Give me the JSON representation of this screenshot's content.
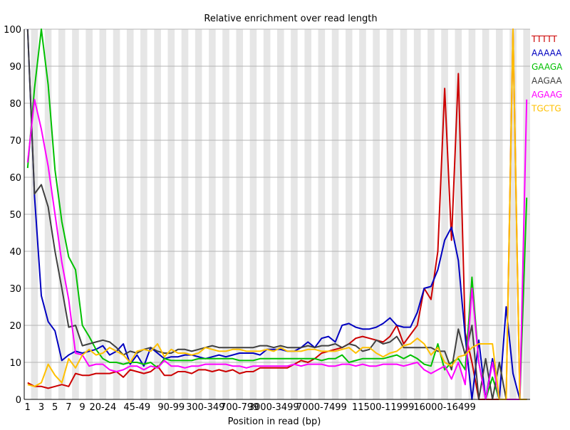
{
  "chart_data": {
    "type": "line",
    "title": "Relative enrichment over read length",
    "xlabel": "Position in read (bp)",
    "ylabel": "",
    "ylim": [
      0,
      100
    ],
    "y_ticks": [
      0,
      10,
      20,
      30,
      40,
      50,
      60,
      70,
      80,
      90,
      100
    ],
    "grid": "horizontal lines with alternating grey column bands",
    "legend_position": "top-right",
    "x_tick_labels": [
      {
        "index": 0,
        "label": "1"
      },
      {
        "index": 2,
        "label": "3"
      },
      {
        "index": 4,
        "label": "5"
      },
      {
        "index": 6,
        "label": "7"
      },
      {
        "index": 8,
        "label": "9"
      },
      {
        "index": 11,
        "label": "20-24"
      },
      {
        "index": 16,
        "label": "45-49"
      },
      {
        "index": 21,
        "label": "90-99"
      },
      {
        "index": 26,
        "label": "300-349"
      },
      {
        "index": 31,
        "label": "700-799"
      },
      {
        "index": 36,
        "label": "3000-3499"
      },
      {
        "index": 43,
        "label": "7000-7499"
      },
      {
        "index": 52,
        "label": "11500-11999"
      },
      {
        "index": 61,
        "label": "16000-16499"
      }
    ],
    "series": [
      {
        "name": "TTTTT",
        "color": "#cc0000",
        "values": [
          4.5,
          3.5,
          3.5,
          3,
          3.5,
          4,
          3.5,
          7,
          6.5,
          6.5,
          7,
          7,
          7,
          7.5,
          6,
          8,
          7.5,
          7,
          7.5,
          9,
          6.5,
          6.5,
          7.5,
          7.5,
          7,
          8,
          8,
          7.5,
          8,
          7.5,
          8,
          7,
          7.5,
          7.5,
          8.5,
          8.5,
          8.5,
          8.5,
          8.5,
          9.5,
          10.5,
          10,
          11,
          12.5,
          13,
          13.5,
          14,
          15,
          16.5,
          17,
          16.5,
          16,
          15.5,
          17,
          20,
          15,
          17.5,
          20,
          30,
          27,
          40,
          84,
          43,
          88,
          18,
          10,
          0,
          0,
          0,
          0,
          0,
          100,
          0,
          0
        ]
      },
      {
        "name": "AAAAA",
        "color": "#0000c0",
        "values": [
          100,
          55,
          28,
          21,
          18.5,
          10.5,
          12,
          13,
          12.5,
          13,
          13.5,
          14.5,
          12,
          13,
          15,
          9.5,
          12,
          9,
          14,
          12.5,
          11,
          11.5,
          11.5,
          12,
          12,
          11.5,
          11,
          11.5,
          12,
          11.5,
          12,
          12.5,
          12.5,
          12.5,
          12,
          13.5,
          13.5,
          13.5,
          13,
          13,
          14,
          15.5,
          14,
          16.5,
          17,
          15.5,
          20,
          20.5,
          19.5,
          19,
          19,
          19.5,
          20.5,
          22,
          20,
          19.5,
          19.5,
          23.5,
          30,
          30.5,
          35,
          43,
          46.5,
          37.5,
          17,
          0,
          16,
          0,
          11,
          0,
          25,
          7,
          0,
          0
        ]
      },
      {
        "name": "GAAGA",
        "color": "#00c000",
        "values": [
          62.5,
          84,
          100,
          85,
          62,
          48,
          38.5,
          35,
          20,
          17,
          13.5,
          11,
          10,
          10,
          9.5,
          10,
          10,
          9.5,
          10,
          8.5,
          11,
          10.5,
          10.5,
          10.5,
          10.5,
          11,
          11,
          11,
          11,
          11,
          11,
          10.5,
          10.5,
          10.5,
          11,
          11,
          11,
          11,
          11,
          11,
          11,
          11,
          11,
          10.5,
          11,
          11,
          12,
          10,
          10.5,
          11,
          11,
          11,
          11,
          11.5,
          12,
          11,
          12,
          11,
          9.5,
          9,
          15,
          8,
          10,
          11,
          8,
          33,
          10,
          0,
          6,
          0,
          0,
          0,
          0,
          54.5
        ]
      },
      {
        "name": "AAGAA",
        "color": "#404040",
        "values": [
          100,
          55.5,
          58,
          52,
          40,
          30,
          19.5,
          20,
          14.5,
          15,
          15.5,
          16,
          15.5,
          14,
          12,
          13,
          12.5,
          13.5,
          14,
          13,
          12.5,
          12.5,
          13.5,
          13.5,
          13,
          13.5,
          14,
          14.5,
          14,
          14,
          14,
          14,
          14,
          14,
          14.5,
          14.5,
          14,
          14.5,
          14,
          14,
          14,
          14.5,
          14,
          14.5,
          14.5,
          15,
          14,
          15,
          14.5,
          13,
          13.5,
          16,
          15,
          15.5,
          17,
          14,
          14,
          14,
          14,
          14,
          13,
          13,
          8,
          19,
          12,
          20,
          0,
          11,
          0,
          10,
          0,
          0,
          0,
          0
        ]
      },
      {
        "name": "AGAAG",
        "color": "#ff00ff",
        "values": [
          64,
          81,
          73,
          63,
          50,
          37,
          27,
          12.5,
          12,
          9,
          9.5,
          9.5,
          8,
          7.5,
          8,
          9,
          9,
          8,
          9,
          8.5,
          10.5,
          9,
          9,
          8.5,
          9,
          9,
          9.5,
          9.5,
          9.5,
          9.5,
          9,
          9,
          8.5,
          9,
          9,
          9,
          9,
          9,
          9,
          9.5,
          9,
          9.5,
          9.5,
          9.5,
          9,
          9,
          9.5,
          9.5,
          9,
          9.5,
          9,
          9,
          9.5,
          9.5,
          9.5,
          9,
          9.5,
          10,
          8,
          7,
          8,
          9,
          5.5,
          10,
          4,
          30,
          10,
          0,
          10,
          0,
          0,
          0,
          0,
          81
        ]
      },
      {
        "name": "TGCTG",
        "color": "#ffc000",
        "values": [
          4,
          3.5,
          4.5,
          9.5,
          6.5,
          4.5,
          11,
          8.5,
          12,
          13.5,
          12,
          12.5,
          14,
          13,
          12,
          10,
          13,
          13.5,
          13,
          15,
          11.5,
          13.5,
          12.5,
          12.5,
          12,
          12.5,
          14,
          13.5,
          13,
          13,
          13.5,
          13.5,
          13,
          13,
          13,
          13.5,
          13,
          14,
          13,
          13,
          13,
          13.5,
          13.5,
          13,
          13,
          13,
          13.5,
          14,
          12.5,
          14,
          14,
          12.5,
          11.5,
          12.5,
          13,
          14.5,
          15,
          16.5,
          15,
          12,
          14,
          10,
          9,
          11.5,
          12,
          14,
          15,
          15,
          15,
          0,
          0,
          100,
          0,
          0
        ]
      }
    ]
  }
}
